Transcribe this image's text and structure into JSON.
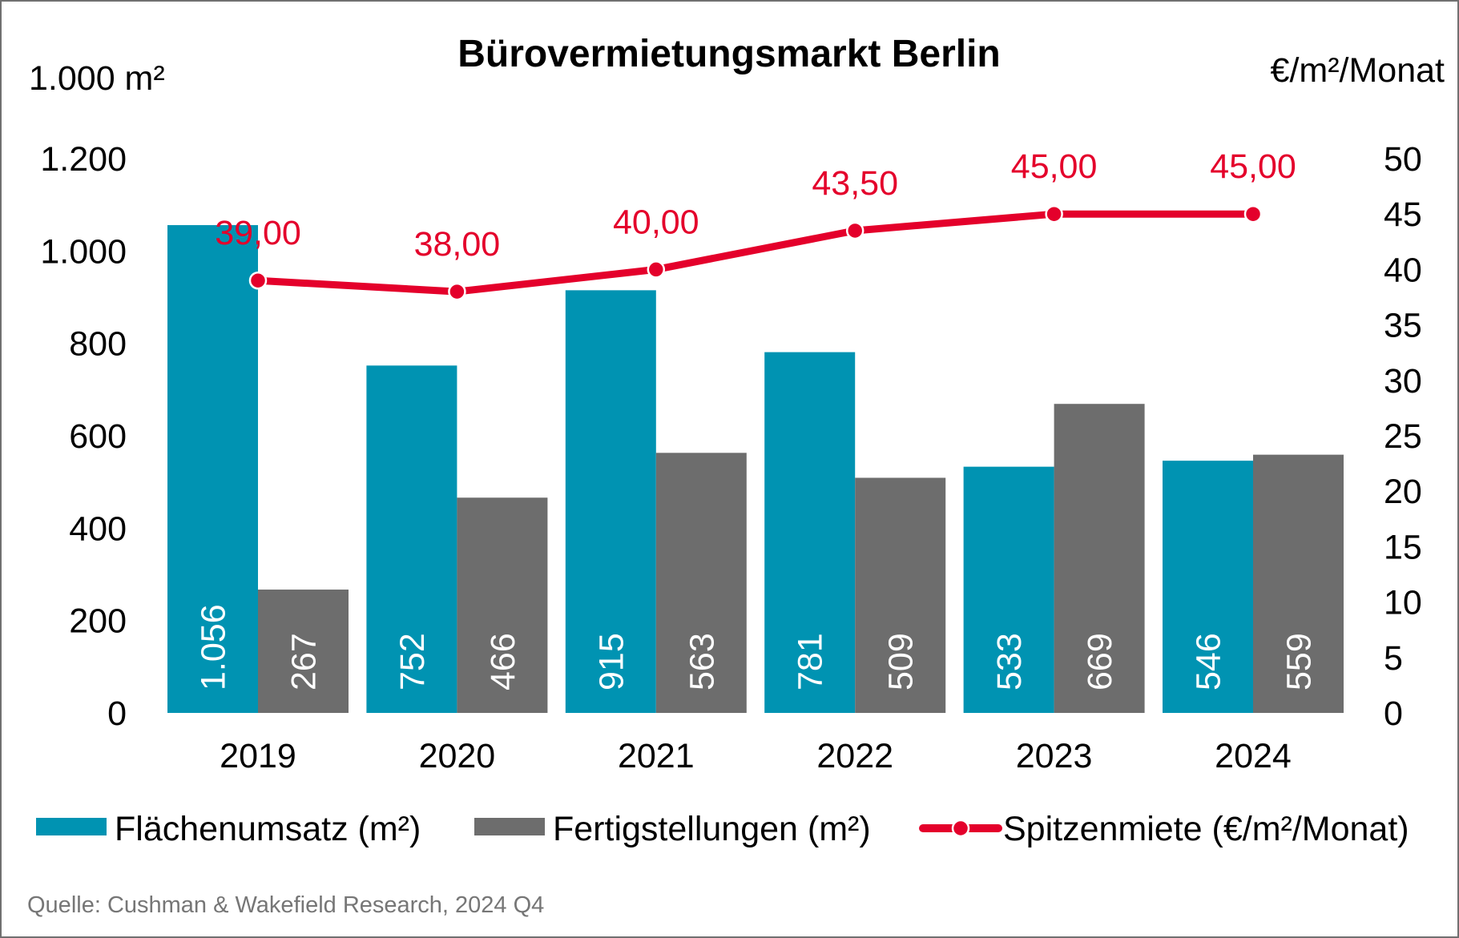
{
  "chart_data": {
    "type": "bar",
    "title": "Bürovermietungsmarkt Berlin",
    "ylabel": "1.000 m²",
    "y2label": "€/m²/Monat",
    "xlabel": "",
    "categories": [
      "2019",
      "2020",
      "2021",
      "2022",
      "2023",
      "2024"
    ],
    "ylim": [
      0,
      1200
    ],
    "yticks": [
      "0",
      "200",
      "400",
      "600",
      "800",
      "1.000",
      "1.200"
    ],
    "y2lim": [
      0,
      50
    ],
    "y2ticks": [
      "0",
      "5",
      "10",
      "15",
      "20",
      "25",
      "30",
      "35",
      "40",
      "45",
      "50"
    ],
    "grid": false,
    "legend_position": "bottom",
    "series": [
      {
        "name": "Flächenumsatz (m²)",
        "kind": "bar",
        "axis": "left",
        "color": "#0093B2",
        "values": [
          1056,
          752,
          915,
          781,
          533,
          546
        ],
        "labels": [
          "1.056",
          "752",
          "915",
          "781",
          "533",
          "546"
        ]
      },
      {
        "name": "Fertigstellungen (m²)",
        "kind": "bar",
        "axis": "left",
        "color": "#6D6D6D",
        "values": [
          267,
          466,
          563,
          509,
          669,
          559
        ],
        "labels": [
          "267",
          "466",
          "563",
          "509",
          "669",
          "559"
        ]
      },
      {
        "name": "Spitzenmiete (€/m²/Monat)",
        "kind": "line",
        "axis": "right",
        "color": "#E4002B",
        "values": [
          39.0,
          38.0,
          40.0,
          43.5,
          45.0,
          45.0
        ],
        "labels": [
          "39,00",
          "38,00",
          "40,00",
          "43,50",
          "45,00",
          "45,00"
        ]
      }
    ],
    "source": "Quelle: Cushman & Wakefield Research, 2024 Q4"
  }
}
